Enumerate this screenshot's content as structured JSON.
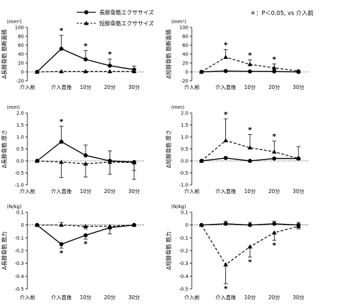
{
  "legend": {
    "long_label": "長腓骨筋エクササイズ",
    "short_label": "短腓骨筋エクササイズ",
    "significance": "＊：P＜0.05, vs 介入前"
  },
  "chart_data": [
    {
      "type": "line",
      "panel": "top-left",
      "unit": "(mm²)",
      "ylabel": "Δ長腓骨筋 筋断面積",
      "categories": [
        "介入前",
        "介入直後",
        "10分",
        "20分",
        "30分"
      ],
      "ylim": [
        -20,
        100
      ],
      "yticks": [
        -20,
        0,
        20,
        40,
        60,
        80,
        100
      ],
      "yticklabels": [
        "-20",
        "0",
        "20",
        "40",
        "60",
        "80",
        "100"
      ],
      "series": [
        {
          "name": "長腓骨筋エクササイズ",
          "style": "solid-circle",
          "values": [
            0,
            52,
            28,
            14,
            5
          ],
          "errors": [
            0,
            30,
            20,
            15,
            8
          ]
        },
        {
          "name": "短腓骨筋エクササイズ",
          "style": "dashed-triangle",
          "values": [
            0,
            1,
            1,
            1,
            1
          ],
          "errors": [
            0,
            0,
            0,
            0,
            0
          ]
        }
      ],
      "stars": [
        1,
        2,
        3
      ]
    },
    {
      "type": "line",
      "panel": "top-right",
      "unit": "(mm²)",
      "ylabel": "Δ短腓骨筋 筋断面積",
      "categories": [
        "介入前",
        "介入直後",
        "10分",
        "20分",
        "30分"
      ],
      "ylim": [
        -20,
        100
      ],
      "yticks": [
        -20,
        0,
        20,
        40,
        60,
        80,
        100
      ],
      "yticklabels": [
        "-20",
        "0",
        "20",
        "40",
        "60",
        "80",
        "100"
      ],
      "series": [
        {
          "name": "長腓骨筋エクササイズ",
          "style": "solid-circle",
          "values": [
            0,
            2,
            1,
            1,
            0
          ],
          "errors": [
            0,
            0,
            0,
            0,
            0
          ]
        },
        {
          "name": "短腓骨筋エクササイズ",
          "style": "dashed-triangle",
          "values": [
            0,
            33,
            17,
            9,
            2
          ],
          "errors": [
            0,
            17,
            10,
            9,
            2
          ]
        }
      ],
      "stars": [
        1,
        2,
        3
      ]
    },
    {
      "type": "line",
      "panel": "middle-left",
      "unit": "(mm)",
      "ylabel": "Δ長腓骨筋 厚さ",
      "categories": [
        "介入前",
        "介入直後",
        "10分",
        "20分",
        "30分"
      ],
      "ylim": [
        -1.0,
        2.0
      ],
      "yticks": [
        -1.0,
        -0.5,
        0,
        0.5,
        1.0,
        1.5,
        2.0
      ],
      "yticklabels": [
        "-1.0",
        "-0.5",
        "0.0",
        "0.5",
        "1.0",
        "1.5",
        "2.0"
      ],
      "series": [
        {
          "name": "長腓骨筋エクササイズ",
          "style": "solid-circle",
          "values": [
            0,
            0.8,
            0.23,
            0.0,
            -0.05
          ],
          "errors": [
            0,
            0.65,
            0.43,
            0.42,
            0.35
          ]
        },
        {
          "name": "短腓骨筋エクササイズ",
          "style": "dashed-triangle",
          "values": [
            0,
            -0.05,
            -0.12,
            -0.05,
            -0.07
          ],
          "errors": [
            0,
            0.65,
            0.55,
            0.5,
            0.7
          ]
        }
      ],
      "stars": [
        1
      ]
    },
    {
      "type": "line",
      "panel": "middle-right",
      "unit": "(mm)",
      "ylabel": "Δ短腓骨筋 厚さ",
      "categories": [
        "介入前",
        "介入直後",
        "10分",
        "20分",
        "30分"
      ],
      "ylim": [
        -1.0,
        2.0
      ],
      "yticks": [
        -1.0,
        -0.5,
        0,
        0.5,
        1.0,
        1.5,
        2.0
      ],
      "yticklabels": [
        "-1.0",
        "-0.5",
        "0.0",
        "0.5",
        "1.0",
        "1.5",
        "2.0"
      ],
      "series": [
        {
          "name": "長腓骨筋エクササイズ",
          "style": "solid-circle",
          "values": [
            0,
            0.12,
            0.0,
            0.1,
            0.1
          ],
          "errors": [
            0,
            0,
            0,
            0,
            0
          ]
        },
        {
          "name": "短腓骨筋エクササイズ",
          "style": "dashed-triangle",
          "values": [
            0,
            0.85,
            0.55,
            0.38,
            0.1
          ],
          "errors": [
            0,
            0.9,
            0.55,
            0.45,
            0.5
          ]
        }
      ],
      "stars": [
        1,
        2,
        3
      ]
    },
    {
      "type": "line",
      "panel": "bottom-left",
      "unit": "(N/kg)",
      "ylabel": "Δ長腓骨筋 筋力",
      "categories": [
        "介入前",
        "介入直後",
        "10分",
        "20分",
        "30分"
      ],
      "ylim": [
        -0.5,
        0.1
      ],
      "yticks": [
        -0.5,
        -0.4,
        -0.3,
        -0.2,
        -0.1,
        0,
        0.1
      ],
      "yticklabels": [
        "-0.5",
        "-0.4",
        "-0.3",
        "-0.2",
        "-0.1",
        "0",
        "0.1"
      ],
      "series": [
        {
          "name": "長腓骨筋エクササイズ",
          "style": "solid-circle",
          "values": [
            0,
            -0.15,
            -0.08,
            -0.02,
            0
          ],
          "errors": [
            0,
            0.03,
            0.03,
            0.05,
            0
          ]
        },
        {
          "name": "短腓骨筋エクササイズ",
          "style": "dashed-triangle",
          "values": [
            0,
            0,
            -0.01,
            -0.01,
            0
          ],
          "errors": [
            0,
            0.02,
            0.02,
            0.02,
            0
          ]
        }
      ],
      "stars": [
        1,
        2
      ]
    },
    {
      "type": "line",
      "panel": "bottom-right",
      "unit": "(N/kg)",
      "ylabel": "Δ短腓骨筋 筋力",
      "categories": [
        "介入前",
        "介入直後",
        "10分",
        "20分",
        "30分"
      ],
      "ylim": [
        -0.5,
        0.1
      ],
      "yticks": [
        -0.5,
        -0.4,
        -0.3,
        -0.2,
        -0.1,
        0,
        0.1
      ],
      "yticklabels": [
        "-0.5",
        "-0.4",
        "-0.3",
        "-0.2",
        "-0.1",
        "0",
        "0.1"
      ],
      "series": [
        {
          "name": "長腓骨筋エクササイズ",
          "style": "solid-circle",
          "values": [
            0,
            0.01,
            0.0,
            0.01,
            0.0
          ],
          "errors": [
            0,
            0.02,
            0.02,
            0.02,
            0.02
          ]
        },
        {
          "name": "短腓骨筋エクササイズ",
          "style": "dashed-triangle",
          "values": [
            0,
            -0.31,
            -0.17,
            -0.06,
            -0.01
          ],
          "errors": [
            0,
            0.15,
            0.08,
            0.06,
            0.02
          ]
        }
      ],
      "stars": [
        1,
        2,
        3
      ]
    }
  ]
}
